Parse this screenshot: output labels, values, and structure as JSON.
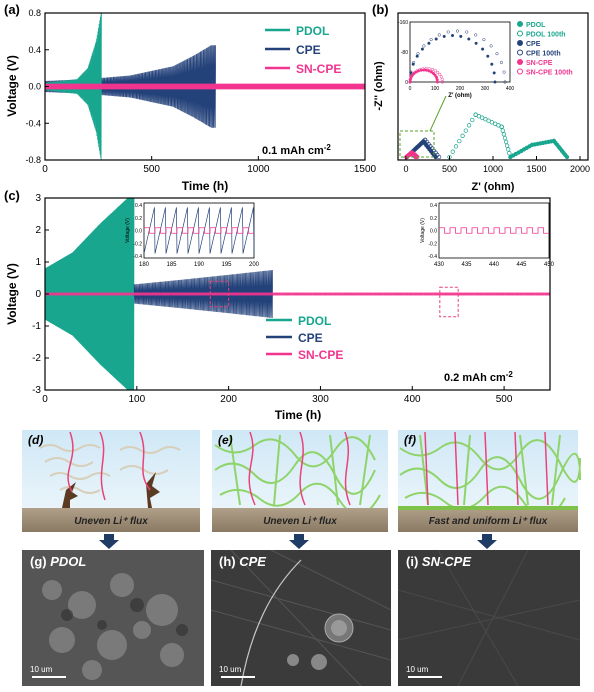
{
  "panels": {
    "a": {
      "label": "(a)",
      "ylabel": "Voltage (V)",
      "xlabel": "Time (h)",
      "annotation": "0.1 mAh cm",
      "annotation_sup": "-2",
      "xticks": [
        "0",
        "500",
        "1000",
        "1500"
      ],
      "yticks": [
        "0.8",
        "0.4",
        "0.0",
        "-0.4",
        "-0.8"
      ]
    },
    "b": {
      "label": "(b)",
      "ylabel": "-Z'' (ohm)",
      "xlabel": "Z' (ohm)",
      "xticks": [
        "0",
        "500",
        "1000",
        "1500",
        "2000"
      ],
      "inset_xticks": [
        "0",
        "100",
        "200",
        "300",
        "400"
      ],
      "inset_yticks": [
        "0",
        "-80",
        "-160"
      ],
      "inset_xlabel": "Z' (ohm)",
      "inset_ylabel": "-Z'' (ohm)"
    },
    "c": {
      "label": "(c)",
      "ylabel": "Voltage (V)",
      "xlabel": "Time (h)",
      "annotation": "0.2 mAh cm",
      "annotation_sup": "-2",
      "xticks": [
        "0",
        "100",
        "200",
        "300",
        "400",
        "500"
      ],
      "yticks": [
        "3",
        "2",
        "1",
        "0",
        "-1",
        "-2",
        "-3"
      ],
      "inset1_xticks": [
        "180",
        "185",
        "190",
        "195",
        "200"
      ],
      "inset2_xticks": [
        "430",
        "435",
        "440",
        "445",
        "450"
      ],
      "inset_yticks": [
        "0.4",
        "0.2",
        "0.0",
        "-0.2",
        "-0.4"
      ],
      "inset_ylabel": "Voltage (V)"
    },
    "d": {
      "label": "(d)",
      "flux_text": "Uneven Li⁺ flux"
    },
    "e": {
      "label": "(e)",
      "flux_text": "Uneven Li⁺ flux"
    },
    "f": {
      "label": "(f)",
      "flux_text": "Fast and uniform Li⁺ flux"
    },
    "g": {
      "label": "(g)",
      "name": "PDOL",
      "scale": "10 um"
    },
    "h": {
      "label": "(h)",
      "name": "CPE",
      "scale": "10 um"
    },
    "i": {
      "label": "(i)",
      "name": "SN-CPE",
      "scale": "10 um"
    }
  },
  "colors": {
    "PDOL": "#19a68f",
    "CPE": "#24427a",
    "SN-CPE": "#f2348e"
  },
  "chart_data": [
    {
      "type": "line",
      "panel": "a",
      "xlabel": "Time (h)",
      "ylabel": "Voltage (V)",
      "xlim": [
        0,
        1500
      ],
      "ylim": [
        -0.8,
        0.8
      ],
      "series": [
        {
          "name": "PDOL",
          "amplitude_envelope": {
            "x": [
              0,
              150,
              200,
              240,
              262,
              265
            ],
            "y": [
              0.04,
              0.08,
              0.2,
              0.5,
              0.8,
              0.8
            ]
          }
        },
        {
          "name": "CPE",
          "amplitude_envelope": {
            "x": [
              0,
              200,
              400,
              600,
              700,
              780,
              800
            ],
            "y": [
              0.06,
              0.08,
              0.12,
              0.22,
              0.34,
              0.45,
              0.45
            ]
          }
        },
        {
          "name": "SN-CPE",
          "amplitude_envelope": {
            "x": [
              0,
              1500
            ],
            "y": [
              0.03,
              0.03
            ]
          }
        }
      ],
      "legend": [
        "PDOL",
        "CPE",
        "SN-CPE"
      ]
    },
    {
      "type": "scatter",
      "panel": "b",
      "xlabel": "Z' (ohm)",
      "ylabel": "-Z'' (ohm)",
      "xlim": [
        0,
        2000
      ],
      "ylim": [
        0,
        1400
      ],
      "series": [
        {
          "name": "PDOL",
          "x": [
            1200,
            1450,
            1700,
            1850
          ],
          "y": [
            0,
            120,
            160,
            0
          ]
        },
        {
          "name": "PDOL 100th",
          "x": [
            500,
            800,
            1100,
            1200
          ],
          "y": [
            0,
            420,
            300,
            0
          ]
        },
        {
          "name": "CPE",
          "x": [
            10,
            200,
            340
          ],
          "y": [
            0,
            155,
            0
          ]
        },
        {
          "name": "CPE 100th",
          "x": [
            10,
            220,
            380
          ],
          "y": [
            0,
            170,
            0
          ]
        },
        {
          "name": "SN-CPE",
          "x": [
            5,
            60,
            110
          ],
          "y": [
            0,
            40,
            0
          ]
        },
        {
          "name": "SN-CPE 100th",
          "x": [
            5,
            70,
            130
          ],
          "y": [
            0,
            45,
            0
          ]
        }
      ],
      "legend": [
        "PDOL",
        "PDOL 100th",
        "CPE",
        "CPE 100th",
        "SN-CPE",
        "SN-CPE 100th"
      ]
    },
    {
      "type": "line",
      "panel": "c",
      "xlabel": "Time (h)",
      "ylabel": "Voltage (V)",
      "xlim": [
        0,
        550
      ],
      "ylim": [
        -3,
        3
      ],
      "series": [
        {
          "name": "PDOL",
          "amplitude_envelope": {
            "x": [
              0,
              30,
              60,
              90,
              97
            ],
            "y": [
              0.8,
              1.3,
              2.2,
              3.0,
              3.0
            ]
          }
        },
        {
          "name": "CPE",
          "amplitude_envelope": {
            "x": [
              97,
              150,
              200,
              248
            ],
            "y": [
              0.3,
              0.45,
              0.6,
              0.75
            ]
          }
        },
        {
          "name": "SN-CPE",
          "amplitude_envelope": {
            "x": [
              0,
              550
            ],
            "y": [
              0.05,
              0.05
            ]
          }
        }
      ],
      "legend": [
        "PDOL",
        "CPE",
        "SN-CPE"
      ]
    }
  ]
}
